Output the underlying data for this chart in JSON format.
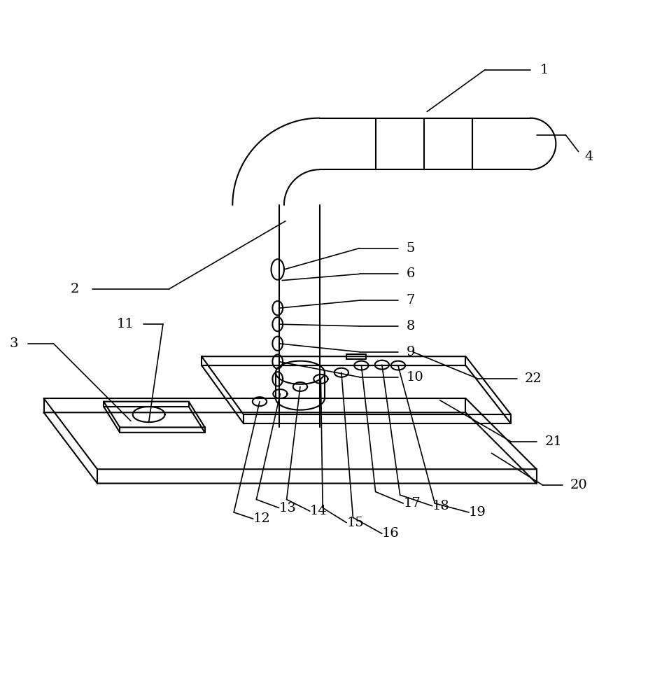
{
  "bg_color": "#ffffff",
  "line_color": "#000000",
  "lw": 1.5,
  "lw_leader": 1.2,
  "fig_width": 9.26,
  "fig_height": 10.0
}
